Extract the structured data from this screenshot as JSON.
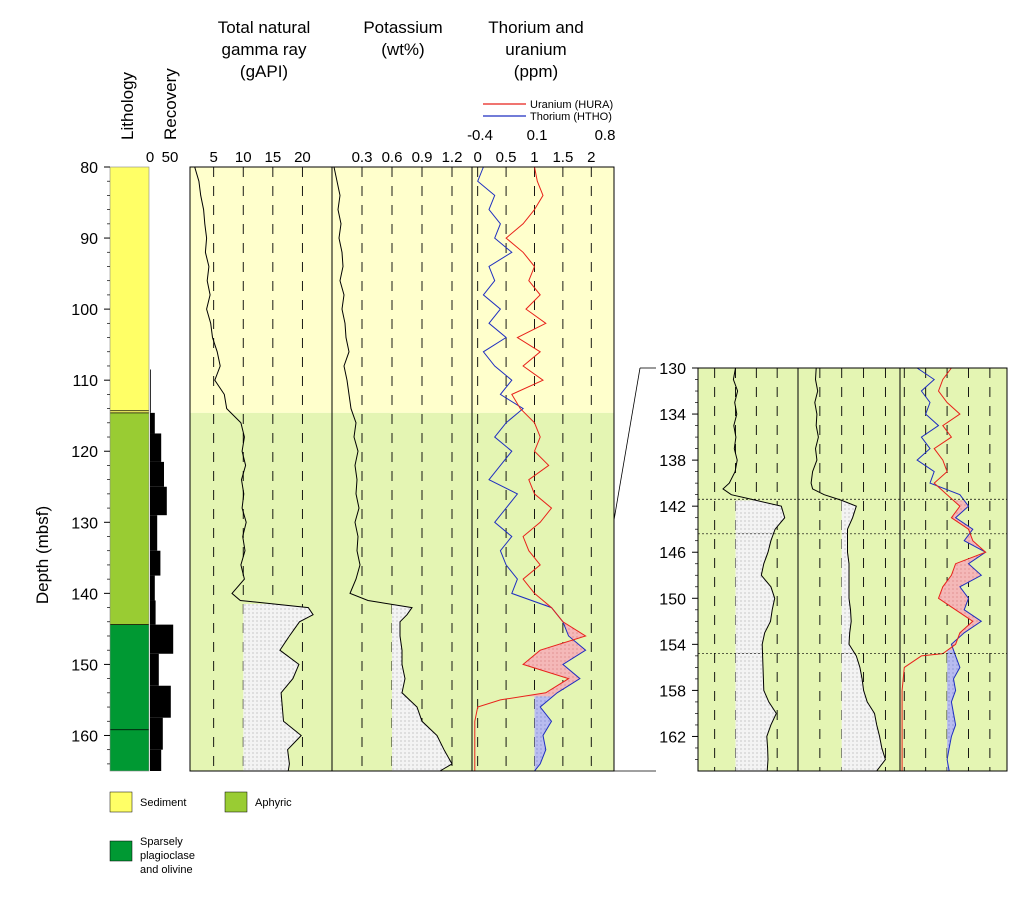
{
  "titles": {
    "lithology": "Lithology",
    "recovery": "Recovery",
    "gamma": [
      "Total natural",
      "gamma ray",
      "(gAPI)"
    ],
    "potassium": [
      "Potassium",
      "(wt%)"
    ],
    "thorium": [
      "Thorium and",
      "uranium",
      "(ppm)"
    ],
    "depth_axis": "Depth (mbsf)"
  },
  "legend": {
    "uranium": "Uranium (HURA)",
    "thorium": "Thorium (HTHO)",
    "sediment": "Sediment",
    "aphyric": "Aphyric",
    "sparsely": [
      "Sparsely",
      "plagioclase",
      "and olivine"
    ]
  },
  "colors": {
    "sediment": "#ffff66",
    "sediment_bg": "#ffffcc",
    "aphyric": "#99cc33",
    "aphyric_bg": "#e4f5b3",
    "sparsely": "#009933",
    "uranium": "#e8221b",
    "thorium": "#1f2fc0",
    "uranium_fill": "#f4b8b8",
    "thorium_fill": "#b8bcef"
  },
  "chart_data": [
    {
      "type": "line",
      "panel": "main",
      "ylim": [
        80,
        165
      ],
      "yticks": [
        80,
        90,
        100,
        110,
        120,
        130,
        140,
        150,
        160
      ],
      "lithology": [
        {
          "unit": "Sediment",
          "top": 80,
          "bottom": 114.6
        },
        {
          "unit": "Aphyric",
          "top": 114.6,
          "bottom": 144.4
        },
        {
          "unit": "Sparsely plagioclase and olivine",
          "top": 144.4,
          "bottom": 165
        }
      ],
      "unit_lines": [
        114.3,
        114.6,
        144.4,
        159.2
      ],
      "recovery": {
        "xlim": [
          0,
          100
        ],
        "xticks": [
          0,
          50
        ],
        "intervals": [
          {
            "top": 108.5,
            "bottom": 114.6,
            "value": 2
          },
          {
            "top": 114.6,
            "bottom": 117.5,
            "value": 12
          },
          {
            "top": 117.5,
            "bottom": 121.5,
            "value": 28
          },
          {
            "top": 121.5,
            "bottom": 125.0,
            "value": 35
          },
          {
            "top": 125.0,
            "bottom": 129.0,
            "value": 42
          },
          {
            "top": 129.0,
            "bottom": 134.0,
            "value": 18
          },
          {
            "top": 134.0,
            "bottom": 137.5,
            "value": 26
          },
          {
            "top": 137.5,
            "bottom": 141.0,
            "value": 12
          },
          {
            "top": 141.0,
            "bottom": 144.4,
            "value": 14
          },
          {
            "top": 144.4,
            "bottom": 148.5,
            "value": 58
          },
          {
            "top": 148.5,
            "bottom": 153.0,
            "value": 22
          },
          {
            "top": 153.0,
            "bottom": 157.5,
            "value": 52
          },
          {
            "top": 157.5,
            "bottom": 162.0,
            "value": 32
          },
          {
            "top": 162.0,
            "bottom": 165.0,
            "value": 28
          }
        ]
      },
      "gamma": {
        "xlabel": "Total natural gamma ray (gAPI)",
        "xlim": [
          1,
          25
        ],
        "xticks": [
          5,
          10,
          15,
          20
        ],
        "cutoff": 10,
        "series": [
          {
            "name": "Total natural gamma ray",
            "depth": [
              80,
              82,
              84,
              86,
              88,
              90,
              92,
              94,
              96,
              98,
              100,
              102,
              104,
              106,
              108,
              110,
              112,
              114,
              116,
              118,
              120,
              122,
              124,
              126,
              128,
              130,
              132,
              134,
              136,
              138,
              140,
              141,
              142,
              143,
              144,
              146,
              148,
              150,
              152,
              154,
              156,
              158,
              160,
              162,
              164,
              165
            ],
            "values": [
              1.8,
              2.5,
              2.8,
              3.3,
              3.5,
              3.8,
              3.6,
              4.2,
              3.9,
              4.4,
              3.8,
              4.5,
              4.8,
              5.6,
              6.1,
              5.2,
              6.8,
              7.2,
              9.6,
              10.2,
              9.8,
              10.4,
              9.7,
              10.1,
              9.8,
              10.5,
              9.9,
              10.3,
              9.6,
              10.2,
              8.1,
              9.5,
              21.0,
              21.8,
              19.5,
              17.8,
              16.2,
              19.4,
              18.4,
              16.4,
              16.6,
              16.8,
              19.8,
              17.5,
              17.8,
              17.6
            ]
          }
        ]
      },
      "potassium": {
        "xlabel": "Potassium (wt%)",
        "xlim": [
          0,
          1.4
        ],
        "xticks": [
          0.3,
          0.6,
          0.9,
          1.2
        ],
        "cutoff": 0.6,
        "series": [
          {
            "name": "Potassium",
            "depth": [
              80,
              82,
              84,
              86,
              88,
              90,
              92,
              94,
              96,
              98,
              100,
              102,
              104,
              106,
              108,
              110,
              112,
              114,
              116,
              118,
              120,
              122,
              124,
              126,
              128,
              130,
              132,
              134,
              136,
              138,
              140,
              141,
              142,
              143,
              144,
              146,
              148,
              150,
              152,
              154,
              156,
              158,
              160,
              162,
              164,
              165
            ],
            "values": [
              0.02,
              0.05,
              0.08,
              0.06,
              0.09,
              0.07,
              0.1,
              0.11,
              0.08,
              0.12,
              0.1,
              0.13,
              0.14,
              0.17,
              0.12,
              0.15,
              0.17,
              0.19,
              0.24,
              0.22,
              0.26,
              0.23,
              0.25,
              0.24,
              0.27,
              0.23,
              0.26,
              0.25,
              0.28,
              0.24,
              0.18,
              0.36,
              0.8,
              0.75,
              0.68,
              0.68,
              0.7,
              0.7,
              0.73,
              0.7,
              0.85,
              0.9,
              1.05,
              1.12,
              1.2,
              1.08
            ]
          }
        ]
      },
      "thorium_uranium": {
        "xlabel": "Thorium and uranium (ppm)",
        "xlim": [
          -0.1,
          2.4
        ],
        "xticks": [
          0,
          0.5,
          1,
          1.5,
          2
        ],
        "legend_range_labels": [
          "-0.4",
          "0.1",
          "0.8"
        ],
        "cutoff": 1.0,
        "series": [
          {
            "name": "Uranium (HURA)",
            "depth": [
              80,
              82,
              84,
              86,
              88,
              90,
              92,
              94,
              96,
              98,
              100,
              102,
              104,
              106,
              108,
              110,
              112,
              114,
              116,
              118,
              120,
              122,
              124,
              126,
              128,
              130,
              132,
              134,
              136,
              138,
              140,
              142,
              144,
              146,
              148,
              150,
              152,
              154,
              155,
              156,
              158,
              160,
              162,
              164,
              165
            ],
            "values": [
              1.0,
              1.05,
              1.15,
              1.0,
              0.8,
              0.5,
              0.8,
              1.0,
              0.9,
              1.1,
              0.85,
              1.2,
              0.7,
              1.1,
              0.8,
              1.15,
              0.6,
              0.75,
              1.0,
              1.1,
              1.0,
              1.25,
              0.9,
              1.0,
              1.3,
              1.1,
              0.8,
              0.9,
              1.1,
              0.8,
              1.0,
              1.3,
              1.5,
              1.9,
              1.1,
              0.8,
              1.6,
              1.2,
              0.4,
              0.0,
              -0.05,
              -0.05,
              -0.05,
              -0.05,
              -0.05
            ]
          },
          {
            "name": "Thorium (HTHO)",
            "depth": [
              80,
              82,
              84,
              86,
              88,
              90,
              92,
              94,
              96,
              98,
              100,
              102,
              104,
              106,
              108,
              110,
              112,
              114,
              116,
              118,
              120,
              122,
              124,
              126,
              128,
              130,
              132,
              134,
              136,
              138,
              140,
              142,
              144,
              146,
              148,
              150,
              152,
              154,
              156,
              158,
              160,
              162,
              164,
              165
            ],
            "values": [
              0.1,
              0.0,
              0.3,
              0.2,
              0.4,
              0.3,
              0.6,
              0.2,
              0.3,
              0.1,
              0.4,
              0.2,
              0.5,
              0.1,
              0.3,
              0.6,
              0.4,
              0.8,
              0.5,
              0.3,
              0.6,
              0.4,
              0.2,
              0.7,
              0.5,
              0.3,
              0.6,
              0.4,
              0.5,
              0.7,
              0.6,
              1.3,
              1.5,
              1.6,
              1.9,
              1.5,
              1.8,
              1.4,
              1.1,
              1.3,
              1.15,
              1.2,
              1.1,
              1.0
            ]
          }
        ]
      }
    },
    {
      "type": "line",
      "panel": "zoom",
      "ylim": [
        130,
        165
      ],
      "yticks": [
        130,
        134,
        138,
        142,
        146,
        150,
        154,
        158,
        162
      ],
      "dotted_lines": [
        141.4,
        144.4,
        154.8
      ],
      "gamma": {
        "depth": [
          130,
          131,
          132,
          133,
          134,
          135,
          136,
          137,
          138,
          139,
          140,
          140.5,
          141,
          141.5,
          142,
          143,
          144,
          145,
          146,
          147,
          148,
          149,
          150,
          151,
          152,
          153,
          154,
          155,
          156,
          157,
          158,
          159,
          160,
          161,
          162,
          163,
          164,
          165
        ],
        "values": [
          10,
          9.5,
          10.5,
          9.8,
          10.3,
          9.6,
          10.1,
          9.7,
          10.4,
          9.9,
          8.5,
          7,
          9,
          15,
          21,
          21.8,
          19.5,
          18.5,
          17.8,
          16.8,
          16.2,
          18.5,
          19.4,
          18.8,
          18.4,
          17,
          16.4,
          16.5,
          16.6,
          16.7,
          16.8,
          18,
          19.8,
          18.5,
          17.5,
          17.7,
          17.8,
          17.6
        ]
      },
      "potassium": {
        "depth": [
          130,
          131,
          132,
          133,
          134,
          135,
          136,
          137,
          138,
          139,
          140,
          140.5,
          141,
          141.5,
          142,
          143,
          144,
          145,
          146,
          147,
          148,
          149,
          150,
          151,
          152,
          153,
          154,
          155,
          156,
          157,
          158,
          159,
          160,
          161,
          162,
          163,
          164,
          165
        ],
        "values": [
          0.25,
          0.24,
          0.27,
          0.23,
          0.26,
          0.25,
          0.28,
          0.24,
          0.26,
          0.2,
          0.18,
          0.2,
          0.36,
          0.6,
          0.8,
          0.75,
          0.68,
          0.68,
          0.68,
          0.7,
          0.7,
          0.7,
          0.7,
          0.72,
          0.73,
          0.71,
          0.7,
          0.8,
          0.85,
          0.88,
          0.9,
          0.95,
          1.05,
          1.08,
          1.12,
          1.15,
          1.2,
          1.08
        ]
      },
      "uranium": {
        "depth": [
          130,
          131,
          132,
          133,
          134,
          135,
          136,
          137,
          138,
          139,
          140,
          141,
          142,
          143,
          144,
          145,
          146,
          147,
          148,
          149,
          150,
          151,
          152,
          153,
          154,
          154.8,
          155,
          156,
          158,
          160,
          162,
          164,
          165
        ],
        "values": [
          1.1,
          0.9,
          0.8,
          1.0,
          1.3,
          0.9,
          1.1,
          0.7,
          0.9,
          1.0,
          0.7,
          1.0,
          1.3,
          1.1,
          1.5,
          1.6,
          1.9,
          1.2,
          1.1,
          0.9,
          0.8,
          1.2,
          1.6,
          1.3,
          1.2,
          0.9,
          0.4,
          0.0,
          -0.05,
          -0.05,
          -0.05,
          -0.05,
          -0.05
        ]
      },
      "thorium": {
        "depth": [
          130,
          131,
          132,
          133,
          134,
          135,
          136,
          137,
          138,
          139,
          140,
          141,
          142,
          143,
          144,
          145,
          146,
          147,
          148,
          149,
          150,
          151,
          152,
          153,
          154,
          155,
          156,
          157,
          158,
          159,
          160,
          161,
          162,
          163,
          164,
          165
        ],
        "values": [
          0.3,
          0.7,
          0.4,
          0.6,
          0.5,
          0.8,
          0.4,
          0.6,
          0.3,
          0.7,
          0.6,
          1.3,
          1.5,
          1.2,
          1.6,
          1.4,
          1.9,
          1.5,
          1.8,
          1.3,
          1.5,
          1.4,
          1.8,
          1.4,
          1.1,
          1.2,
          1.3,
          1.15,
          1.2,
          1.1,
          1.15,
          1.2,
          1.1,
          1.05,
          1.0,
          1.05
        ]
      }
    }
  ]
}
